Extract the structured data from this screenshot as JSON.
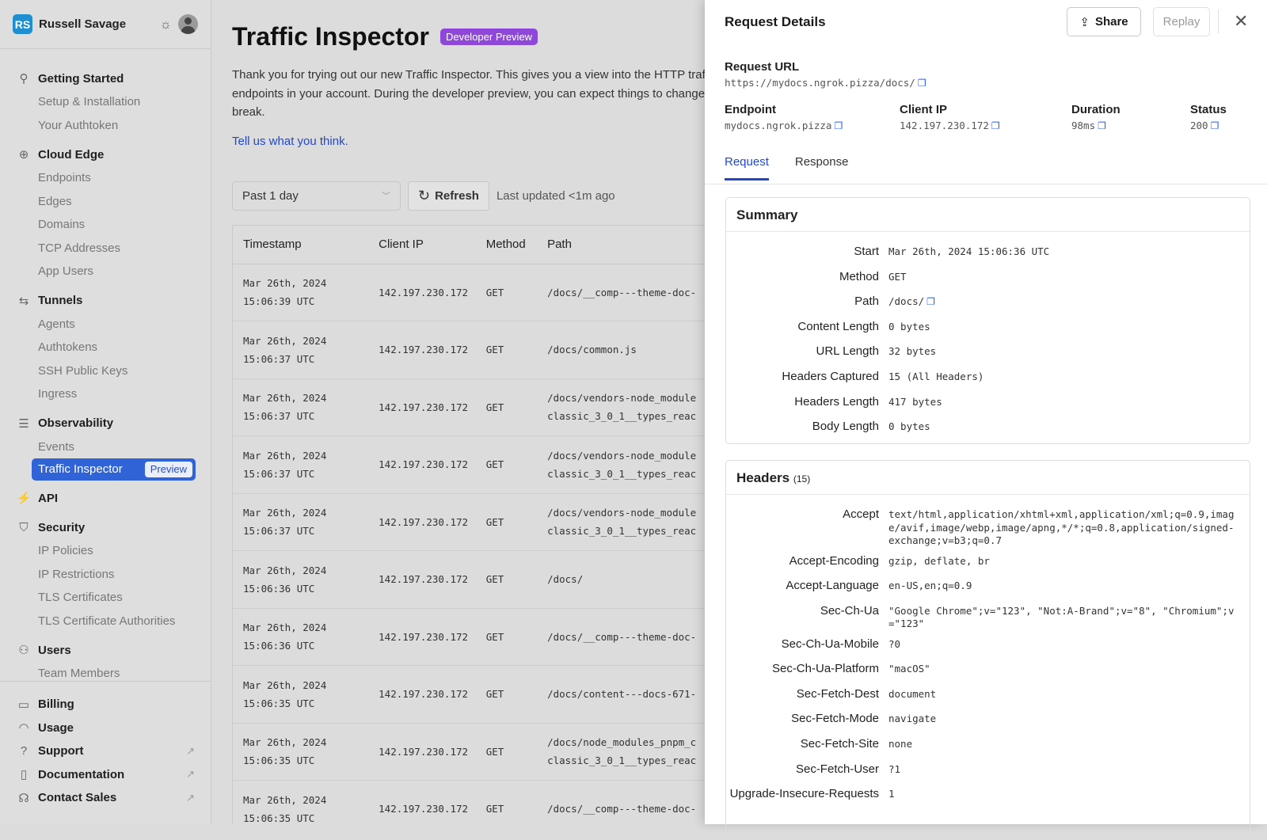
{
  "sidebar": {
    "user_initials": "RS",
    "user_name": "Russell Savage",
    "sections": [
      {
        "label": "Getting Started",
        "icon": "rocket-icon",
        "items": [
          "Setup & Installation",
          "Your Authtoken"
        ]
      },
      {
        "label": "Cloud Edge",
        "icon": "globe-icon",
        "items": [
          "Endpoints",
          "Edges",
          "Domains",
          "TCP Addresses",
          "App Users"
        ]
      },
      {
        "label": "Tunnels",
        "icon": "arrows-icon",
        "items": [
          "Agents",
          "Authtokens",
          "SSH Public Keys",
          "Ingress"
        ]
      },
      {
        "label": "Observability",
        "icon": "observability-icon",
        "items": [
          "Events",
          "Traffic Inspector"
        ]
      },
      {
        "label": "API",
        "icon": "plug-icon",
        "items": []
      },
      {
        "label": "Security",
        "icon": "shield-icon",
        "items": [
          "IP Policies",
          "IP Restrictions",
          "TLS Certificates",
          "TLS Certificate Authorities"
        ]
      },
      {
        "label": "Users",
        "icon": "users-icon",
        "items": [
          "Team Members"
        ]
      }
    ],
    "active_badge": "Preview",
    "footer": [
      {
        "label": "Billing",
        "icon": "card-icon",
        "external": false
      },
      {
        "label": "Usage",
        "icon": "gauge-icon",
        "external": false
      },
      {
        "label": "Support",
        "icon": "help-icon",
        "external": true
      },
      {
        "label": "Documentation",
        "icon": "book-icon",
        "external": true
      },
      {
        "label": "Contact Sales",
        "icon": "headset-icon",
        "external": true
      }
    ]
  },
  "main": {
    "title": "Traffic Inspector",
    "badge": "Developer Preview",
    "intro": "Thank you for trying out our new Traffic Inspector. This gives you a view into the HTTP traffic of endpoints in your account. During the developer preview, you can expect things to change or break.",
    "feedback_link": "Tell us what you think.",
    "range": "Past 1 day",
    "refresh": "Refresh",
    "last_updated": "Last updated <1m ago",
    "columns": [
      "Timestamp",
      "Client IP",
      "Method",
      "Path"
    ],
    "rows": [
      {
        "date": "Mar 26th, 2024",
        "time": "15:06:39 UTC",
        "ip": "142.197.230.172",
        "method": "GET",
        "path": "/docs/__comp---theme-doc-",
        "path2": ""
      },
      {
        "date": "Mar 26th, 2024",
        "time": "15:06:37 UTC",
        "ip": "142.197.230.172",
        "method": "GET",
        "path": "/docs/common.js",
        "path2": ""
      },
      {
        "date": "Mar 26th, 2024",
        "time": "15:06:37 UTC",
        "ip": "142.197.230.172",
        "method": "GET",
        "path": "/docs/vendors-node_module",
        "path2": "classic_3_0_1__types_reac"
      },
      {
        "date": "Mar 26th, 2024",
        "time": "15:06:37 UTC",
        "ip": "142.197.230.172",
        "method": "GET",
        "path": "/docs/vendors-node_module",
        "path2": "classic_3_0_1__types_reac"
      },
      {
        "date": "Mar 26th, 2024",
        "time": "15:06:37 UTC",
        "ip": "142.197.230.172",
        "method": "GET",
        "path": "/docs/vendors-node_module",
        "path2": "classic_3_0_1__types_reac"
      },
      {
        "date": "Mar 26th, 2024",
        "time": "15:06:36 UTC",
        "ip": "142.197.230.172",
        "method": "GET",
        "path": "/docs/",
        "path2": ""
      },
      {
        "date": "Mar 26th, 2024",
        "time": "15:06:36 UTC",
        "ip": "142.197.230.172",
        "method": "GET",
        "path": "/docs/__comp---theme-doc-",
        "path2": ""
      },
      {
        "date": "Mar 26th, 2024",
        "time": "15:06:35 UTC",
        "ip": "142.197.230.172",
        "method": "GET",
        "path": "/docs/content---docs-671-",
        "path2": ""
      },
      {
        "date": "Mar 26th, 2024",
        "time": "15:06:35 UTC",
        "ip": "142.197.230.172",
        "method": "GET",
        "path": "/docs/node_modules_pnpm_c",
        "path2": "classic_3_0_1__types_reac"
      },
      {
        "date": "Mar 26th, 2024",
        "time": "15:06:35 UTC",
        "ip": "142.197.230.172",
        "method": "GET",
        "path": "/docs/__comp---theme-doc-",
        "path2": ""
      }
    ]
  },
  "panel": {
    "title": "Request Details",
    "share": "Share",
    "replay": "Replay",
    "url_label": "Request URL",
    "url": "https://mydocs.ngrok.pizza/docs/",
    "meta": [
      {
        "label": "Endpoint",
        "value": "mydocs.ngrok.pizza"
      },
      {
        "label": "Client IP",
        "value": "142.197.230.172"
      },
      {
        "label": "Duration",
        "value": "98ms"
      },
      {
        "label": "Status",
        "value": "200"
      }
    ],
    "tabs": [
      "Request",
      "Response"
    ],
    "active_tab": "Request",
    "summary_title": "Summary",
    "summary": [
      {
        "k": "Start",
        "v": "Mar 26th, 2024 15:06:36 UTC"
      },
      {
        "k": "Method",
        "v": "GET"
      },
      {
        "k": "Path",
        "v": "/docs/",
        "copy": true
      },
      {
        "k": "Content Length",
        "v": "0 bytes"
      },
      {
        "k": "URL Length",
        "v": "32 bytes"
      },
      {
        "k": "Headers Captured",
        "v": "15 (All Headers)"
      },
      {
        "k": "Headers Length",
        "v": "417 bytes"
      },
      {
        "k": "Body Length",
        "v": "0 bytes"
      }
    ],
    "headers_title": "Headers",
    "headers_count": "(15)",
    "headers": [
      {
        "k": "Accept",
        "v": "text/html,application/xhtml+xml,application/xml;q=0.9,image/avif,image/webp,image/apng,*/*;q=0.8,application/signed-exchange;v=b3;q=0.7"
      },
      {
        "k": "Accept-Encoding",
        "v": "gzip, deflate, br"
      },
      {
        "k": "Accept-Language",
        "v": "en-US,en;q=0.9"
      },
      {
        "k": "Sec-Ch-Ua",
        "v": "\"Google Chrome\";v=\"123\", \"Not:A-Brand\";v=\"8\", \"Chromium\";v=\"123\""
      },
      {
        "k": "Sec-Ch-Ua-Mobile",
        "v": "?0"
      },
      {
        "k": "Sec-Ch-Ua-Platform",
        "v": "\"macOS\""
      },
      {
        "k": "Sec-Fetch-Dest",
        "v": "document"
      },
      {
        "k": "Sec-Fetch-Mode",
        "v": "navigate"
      },
      {
        "k": "Sec-Fetch-Site",
        "v": "none"
      },
      {
        "k": "Sec-Fetch-User",
        "v": "?1"
      },
      {
        "k": "Upgrade-Insecure-Requests",
        "v": "1"
      }
    ]
  },
  "colors": {
    "accent": "#2148cc",
    "active_nav": "#3063d6",
    "badge": "#8e47d8",
    "avatar": "#1f8fd0"
  }
}
